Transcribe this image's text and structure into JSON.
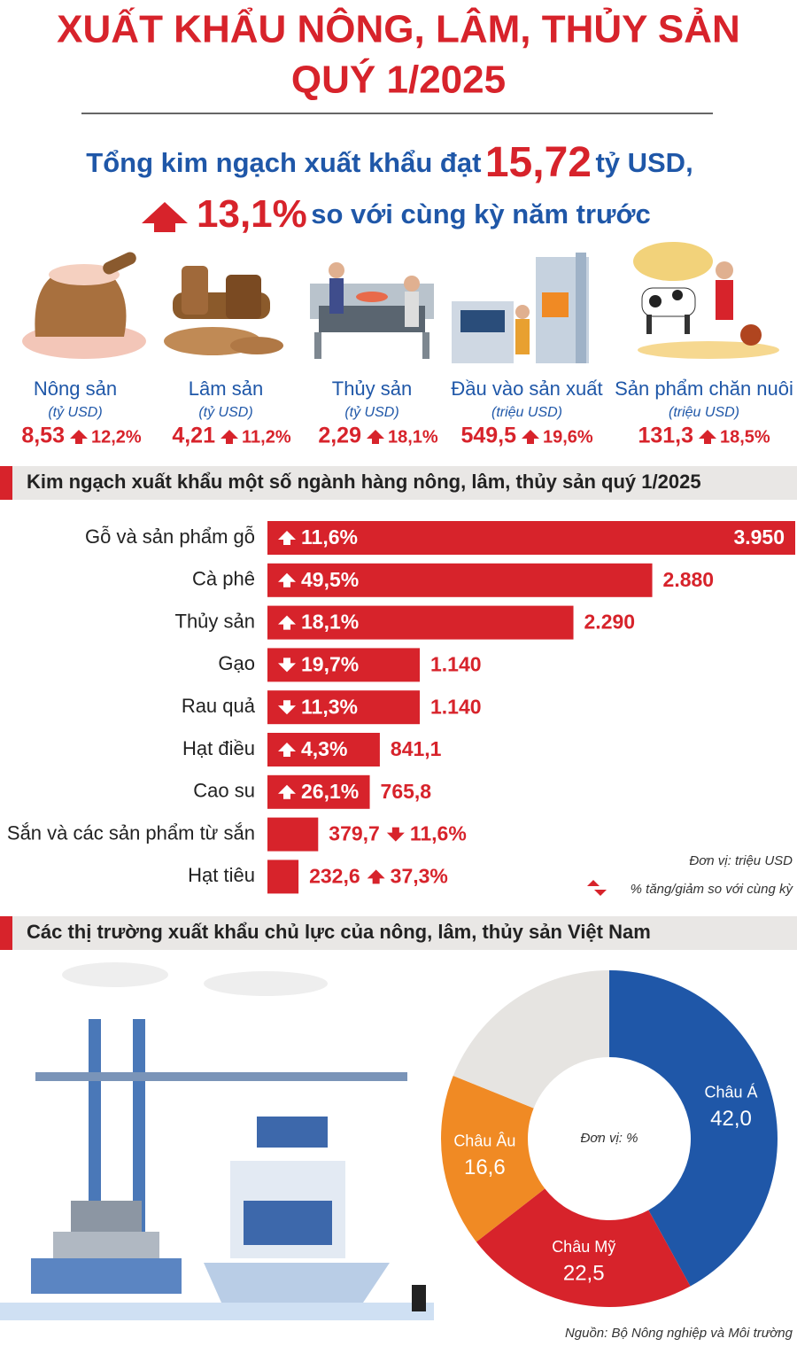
{
  "header": {
    "title_lines": [
      "XUẤT KHẨU NÔNG, LÂM, THỦY SẢN",
      "QUÝ 1/2025"
    ]
  },
  "summary": {
    "prefix": "Tổng kim ngạch xuất khẩu đạt",
    "total": "15,72",
    "unit": "tỷ USD,",
    "growth": "13,1%",
    "growth_text": "so với cùng kỳ năm trước"
  },
  "sectors": [
    {
      "name": "Nông sản",
      "unit": "(tỷ USD)",
      "value": "8,53",
      "change": "12,2%"
    },
    {
      "name": "Lâm sản",
      "unit": "(tỷ USD)",
      "value": "4,21",
      "change": "11,2%"
    },
    {
      "name": "Thủy sản",
      "unit": "(tỷ USD)",
      "value": "2,29",
      "change": "18,1%"
    },
    {
      "name": "Đầu vào sản xuất",
      "unit": "(triệu USD)",
      "value": "549,5",
      "change": "19,6%"
    },
    {
      "name": "Sản phẩm chăn nuôi",
      "unit": "(triệu USD)",
      "value": "131,3",
      "change": "18,5%"
    }
  ],
  "chart_data": [
    {
      "type": "bar",
      "orientation": "horizontal",
      "title": "Kim ngạch xuất khẩu một số ngành hàng nông, lâm, thủy sản quý 1/2025",
      "categories": [
        "Gỗ và sản phẩm gỗ",
        "Cà phê",
        "Thủy sản",
        "Gạo",
        "Rau quả",
        "Hạt điều",
        "Cao su",
        "Sắn và các sản phẩm từ sắn",
        "Hạt tiêu"
      ],
      "values": [
        3950,
        2880,
        2290,
        1140,
        1140,
        841.1,
        765.8,
        379.7,
        232.6
      ],
      "value_labels": [
        "3.950",
        "2.880",
        "2.290",
        "1.140",
        "1.140",
        "841,1",
        "765,8",
        "379,7",
        "232,6"
      ],
      "changes": [
        11.6,
        49.5,
        18.1,
        -19.7,
        -11.3,
        4.3,
        26.1,
        -11.6,
        37.3
      ],
      "change_labels": [
        "11,6%",
        "49,5%",
        "18,1%",
        "19,7%",
        "11,3%",
        "4,3%",
        "26,1%",
        "11,6%",
        "37,3%"
      ],
      "color": "#d7232b",
      "unit_note": "Đơn vị: triệu USD",
      "legend_note": "% tăng/giảm so với cùng kỳ"
    },
    {
      "type": "pie",
      "donut": true,
      "title": "Các thị trường xuất khẩu chủ lực của nông, lâm, thủy sản Việt Nam",
      "categories": [
        "Châu Á",
        "Châu Mỹ",
        "Châu Âu",
        null
      ],
      "values": [
        42.0,
        22.5,
        16.6,
        18.9
      ],
      "value_labels": [
        "42,0",
        "22,5",
        "16,6",
        null
      ],
      "colors": [
        "#1f57a8",
        "#d7232b",
        "#f08a24",
        "#e6e4e1"
      ],
      "center_note": "Đơn vị: %"
    }
  ],
  "footer": {
    "source": "Nguồn: Bộ Nông nghiệp và Môi trường"
  }
}
